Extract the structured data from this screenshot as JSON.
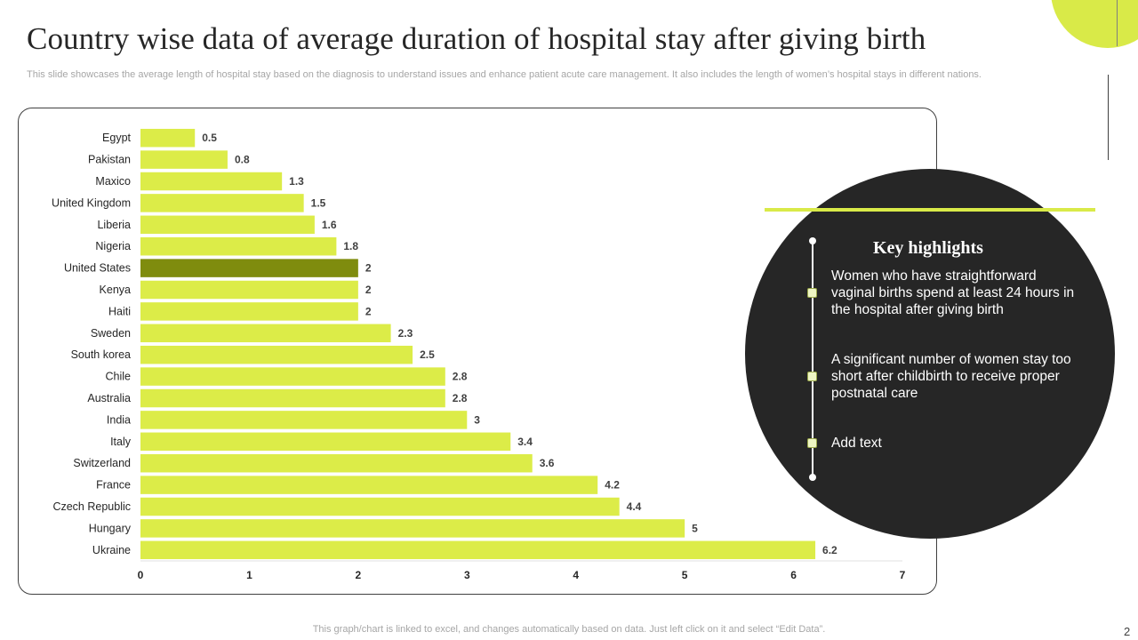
{
  "slide": {
    "title": "Country wise data of average duration of hospital  stay after giving birth",
    "subtitle": "This slide showcases the average length of hospital stay based on the diagnosis to understand issues and enhance patient acute care management. It also includes the length of women’s hospital stays in different nations.",
    "footer": "This graph/chart is linked to excel,  and changes automatically based on data. Just left click on it and select “Edit Data”.",
    "page_number": "2"
  },
  "highlights": {
    "title": "Key highlights",
    "items": [
      "Women who have straightforward vaginal births spend at least 24 hours in the hospital after giving birth",
      "A significant number of women stay too short after childbirth to receive proper postnatal care",
      "Add text"
    ]
  },
  "colors": {
    "bar": "#dcec48",
    "highlight_bar": "#7f8c0e",
    "dark_panel": "#262626",
    "accent": "#d9ea48"
  },
  "chart_data": {
    "type": "bar",
    "orientation": "horizontal",
    "title": "",
    "xlabel": "",
    "ylabel": "",
    "categories": [
      "Egypt",
      "Pakistan",
      "Maxico",
      "United Kingdom",
      "Liberia",
      "Nigeria",
      "United States",
      "Kenya",
      "Haiti",
      "Sweden",
      "South korea",
      "Chile",
      "Australia",
      "India",
      "Italy",
      "Switzerland",
      "France",
      "Czech Republic",
      "Hungary",
      "Ukraine"
    ],
    "values": [
      0.5,
      0.8,
      1.3,
      1.5,
      1.6,
      1.8,
      2,
      2,
      2,
      2.3,
      2.5,
      2.8,
      2.8,
      3,
      3.4,
      3.6,
      4.2,
      4.4,
      5,
      6.2
    ],
    "highlighted_category": "United States",
    "xlim": [
      0,
      7
    ],
    "xticks": [
      0,
      1,
      2,
      3,
      4,
      5,
      6,
      7
    ],
    "grid": false,
    "legend": "none"
  }
}
